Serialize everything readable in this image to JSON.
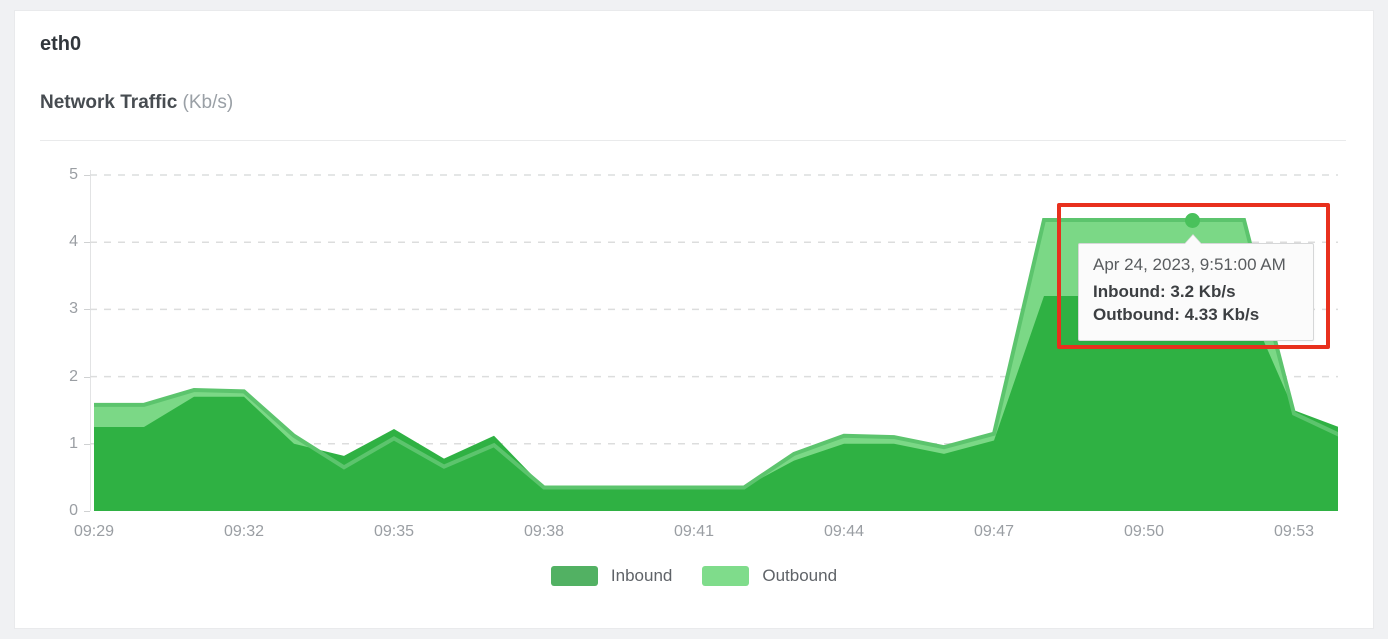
{
  "header": {
    "interface_name": "eth0",
    "chart_title": "Network Traffic",
    "chart_units": "(Kb/s)"
  },
  "chart_data": {
    "type": "area",
    "title": "Network Traffic (Kb/s)",
    "xlabel": "",
    "ylabel": "Kb/s",
    "ylim": [
      0,
      5
    ],
    "y_ticks": [
      0,
      1,
      2,
      3,
      4,
      5
    ],
    "x": [
      "09:29",
      "09:30",
      "09:31",
      "09:32",
      "09:33",
      "09:34",
      "09:35",
      "09:36",
      "09:37",
      "09:38",
      "09:39",
      "09:40",
      "09:41",
      "09:42",
      "09:43",
      "09:44",
      "09:45",
      "09:46",
      "09:47",
      "09:48",
      "09:49",
      "09:50",
      "09:51",
      "09:52",
      "09:53",
      "09:54"
    ],
    "x_tick_labels": [
      "09:29",
      "09:32",
      "09:35",
      "09:38",
      "09:41",
      "09:44",
      "09:47",
      "09:50",
      "09:53"
    ],
    "grid": "dashed horizontal gridlines",
    "legend_position": "bottom",
    "series": [
      {
        "name": "Inbound",
        "fill_color": "#2fb143",
        "line_color": "#2fb143",
        "values": [
          1.25,
          1.25,
          1.7,
          1.7,
          1.0,
          0.82,
          1.22,
          0.78,
          1.12,
          0.35,
          0.35,
          0.35,
          0.35,
          0.35,
          0.75,
          1.0,
          1.0,
          0.85,
          1.05,
          3.2,
          3.2,
          3.2,
          3.2,
          3.2,
          1.5,
          1.22
        ]
      },
      {
        "name": "Outbound",
        "fill_color": "#7bd886",
        "line_color": "#5cc46d",
        "values": [
          1.58,
          1.58,
          1.8,
          1.78,
          1.12,
          0.65,
          1.08,
          0.66,
          0.98,
          0.35,
          0.35,
          0.35,
          0.35,
          0.35,
          0.85,
          1.12,
          1.1,
          0.95,
          1.15,
          4.33,
          4.33,
          4.33,
          4.33,
          4.33,
          1.45,
          1.1
        ]
      }
    ]
  },
  "tooltip": {
    "timestamp": "Apr 24, 2023, 9:51:00 AM",
    "inbound": "Inbound: 3.2 Kb/s",
    "outbound": "Outbound: 4.33 Kb/s",
    "point_time": "09:51",
    "inbound_value": 3.2,
    "outbound_value": 4.33,
    "dot_color": "#49c15b"
  },
  "legend": {
    "items": [
      {
        "label": "Inbound",
        "color": "#52b163"
      },
      {
        "label": "Outbound",
        "color": "#7fdc8b"
      }
    ]
  },
  "annotation": {
    "highlight_color": "#e8301d"
  },
  "colors": {
    "page_background": "#f0f1f3",
    "card_background": "#ffffff",
    "gridline": "#dcdddd",
    "axis_label": "#9a9ea3"
  }
}
